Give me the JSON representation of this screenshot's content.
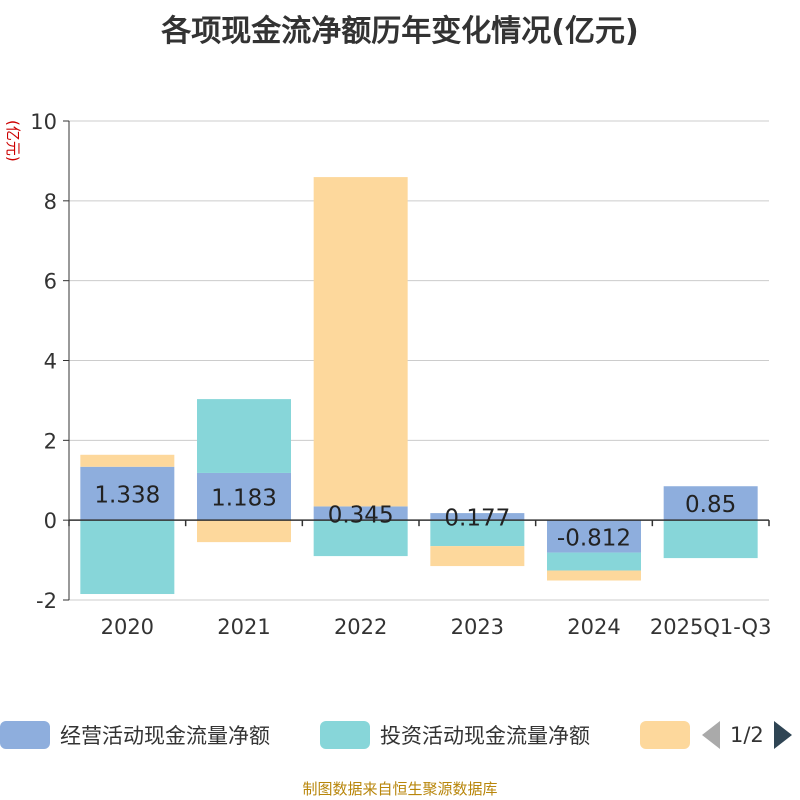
{
  "chart_data": {
    "type": "bar",
    "stacked": true,
    "title": "各项现金流净额历年变化情况(亿元)",
    "ylabel": "(亿元)",
    "categories": [
      "2020",
      "2021",
      "2022",
      "2023",
      "2024",
      "2025Q1-Q3"
    ],
    "ylim": [
      -2,
      10
    ],
    "yticks": [
      -2,
      0,
      2,
      4,
      6,
      8,
      10
    ],
    "grid": true,
    "legend_position": "bottom",
    "series": [
      {
        "name": "经营活动现金流量净额",
        "color": "#8eaedd",
        "values": [
          1.338,
          1.183,
          0.345,
          0.177,
          -0.812,
          0.85
        ],
        "show_labels": true
      },
      {
        "name": "投资活动现金流量净额",
        "color": "#87d6d9",
        "values": [
          -1.85,
          1.85,
          -0.9,
          -0.65,
          -0.45,
          -0.95
        ],
        "show_labels": false
      },
      {
        "name": "",
        "color": "#fdd89c",
        "values": [
          0.3,
          -0.55,
          8.25,
          -0.5,
          -0.25,
          0
        ],
        "show_labels": false
      }
    ]
  },
  "legend": {
    "page_indicator": "1/2"
  },
  "source": "制图数据来自恒生聚源数据库"
}
